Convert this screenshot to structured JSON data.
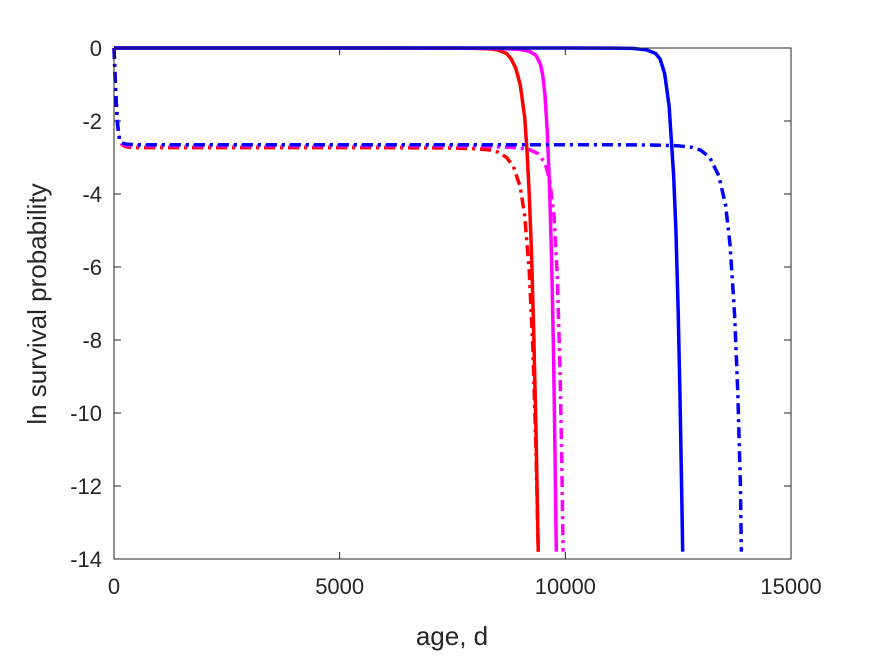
{
  "chart_data": {
    "type": "line",
    "xlabel": "age, d",
    "ylabel": "ln survival probability",
    "xlim": [
      0,
      15000
    ],
    "ylim": [
      -14,
      0
    ],
    "xticks": [
      0,
      5000,
      10000,
      15000
    ],
    "yticks": [
      -14,
      -12,
      -10,
      -8,
      -6,
      -4,
      -2,
      0
    ],
    "xtick_labels": [
      "0",
      "5000",
      "10000",
      "15000"
    ],
    "ytick_labels": [
      "-14",
      "-12",
      "-10",
      "-8",
      "-6",
      "-4",
      "-2",
      "0"
    ],
    "grid": false,
    "series": [
      {
        "color": "#ff0000",
        "style": "solid",
        "x": [
          0,
          2000,
          4000,
          6000,
          7000,
          7500,
          8000,
          8300,
          8500,
          8700,
          8800,
          8900,
          9000,
          9100,
          9150,
          9200,
          9250,
          9300,
          9350,
          9380,
          9400
        ],
        "y": [
          0,
          0,
          0,
          0,
          -0.002,
          -0.005,
          -0.01,
          -0.02,
          -0.05,
          -0.15,
          -0.3,
          -0.55,
          -1.0,
          -1.9,
          -2.8,
          -4.0,
          -5.6,
          -7.8,
          -10.5,
          -12.5,
          -13.8
        ]
      },
      {
        "color": "#ff00ff",
        "style": "solid",
        "x": [
          0,
          2000,
          4000,
          6000,
          7500,
          8500,
          9000,
          9200,
          9350,
          9450,
          9500,
          9550,
          9600,
          9650,
          9700,
          9740,
          9770,
          9800
        ],
        "y": [
          0,
          0,
          0,
          0,
          -0.002,
          -0.01,
          -0.04,
          -0.09,
          -0.2,
          -0.45,
          -0.75,
          -1.3,
          -2.3,
          -3.8,
          -6.0,
          -8.5,
          -11.0,
          -13.8
        ]
      },
      {
        "color": "#0000ff",
        "style": "solid",
        "x": [
          0,
          2000,
          4000,
          6000,
          8000,
          10000,
          11000,
          11500,
          11800,
          12000,
          12100,
          12200,
          12300,
          12400,
          12450,
          12500,
          12540,
          12580,
          12600
        ],
        "y": [
          0,
          0,
          0,
          0,
          0,
          0,
          -0.002,
          -0.01,
          -0.05,
          -0.15,
          -0.3,
          -0.7,
          -1.6,
          -3.5,
          -5.0,
          -7.2,
          -9.5,
          -12.3,
          -13.8
        ]
      },
      {
        "color": "#ff0000",
        "style": "dashdot",
        "x": [
          0,
          40,
          80,
          120,
          180,
          250,
          350,
          500,
          1000,
          3000,
          6000,
          7500,
          8000,
          8300,
          8500,
          8700,
          8850,
          9000,
          9100,
          9200,
          9280,
          9350,
          9400
        ],
        "y": [
          0,
          -1.3,
          -2.1,
          -2.5,
          -2.65,
          -2.7,
          -2.72,
          -2.73,
          -2.73,
          -2.73,
          -2.73,
          -2.74,
          -2.76,
          -2.79,
          -2.85,
          -3.0,
          -3.25,
          -3.8,
          -4.6,
          -6.1,
          -8.2,
          -11.0,
          -13.8
        ]
      },
      {
        "color": "#ff00ff",
        "style": "dashdot",
        "x": [
          0,
          40,
          80,
          120,
          180,
          250,
          350,
          500,
          1000,
          3000,
          6000,
          8000,
          8800,
          9200,
          9400,
          9550,
          9650,
          9750,
          9820,
          9880,
          9920,
          9950
        ],
        "y": [
          0,
          -1.3,
          -2.1,
          -2.5,
          -2.63,
          -2.67,
          -2.68,
          -2.68,
          -2.68,
          -2.68,
          -2.68,
          -2.69,
          -2.72,
          -2.78,
          -2.9,
          -3.15,
          -3.6,
          -4.6,
          -6.2,
          -8.7,
          -11.2,
          -13.8
        ]
      },
      {
        "color": "#0000ff",
        "style": "dashdot",
        "x": [
          0,
          40,
          80,
          120,
          180,
          250,
          350,
          500,
          1000,
          3000,
          6000,
          9000,
          11000,
          12000,
          12500,
          12800,
          13000,
          13200,
          13400,
          13550,
          13650,
          13750,
          13820,
          13880,
          13900
        ],
        "y": [
          0,
          -1.3,
          -2.1,
          -2.5,
          -2.6,
          -2.63,
          -2.64,
          -2.65,
          -2.65,
          -2.65,
          -2.65,
          -2.65,
          -2.65,
          -2.66,
          -2.68,
          -2.72,
          -2.8,
          -3.0,
          -3.5,
          -4.3,
          -5.4,
          -7.3,
          -9.4,
          -12.0,
          -13.8
        ]
      }
    ]
  }
}
